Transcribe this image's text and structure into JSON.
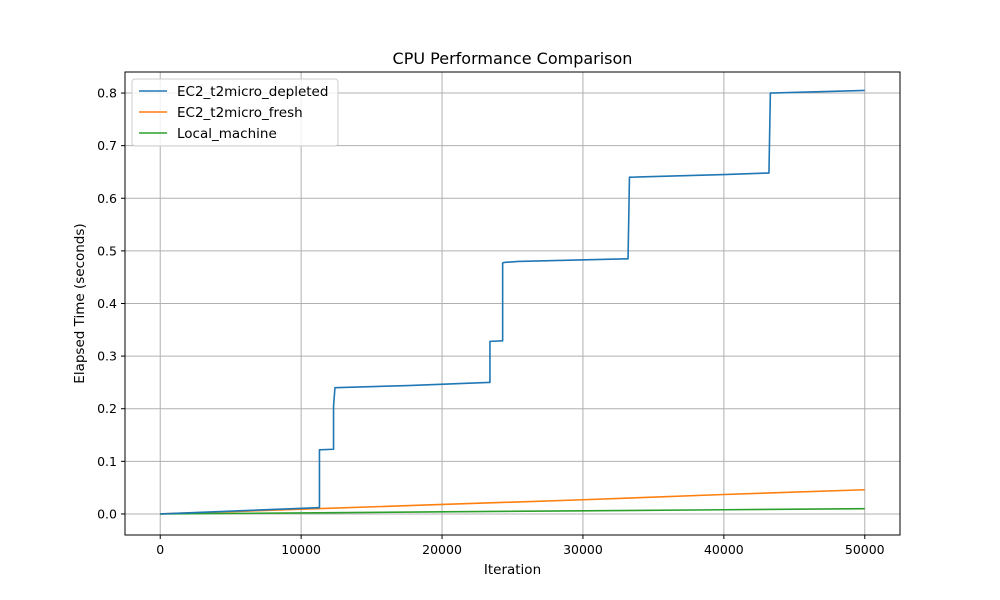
{
  "chart_data": {
    "type": "line",
    "title": "CPU Performance Comparison",
    "xlabel": "Iteration",
    "ylabel": "Elapsed Time (seconds)",
    "xlim": [
      -2500,
      52500
    ],
    "ylim": [
      -0.04,
      0.84
    ],
    "xticks": [
      0,
      10000,
      20000,
      30000,
      40000,
      50000
    ],
    "xtick_labels": [
      "0",
      "10000",
      "20000",
      "30000",
      "40000",
      "50000"
    ],
    "yticks": [
      0.0,
      0.1,
      0.2,
      0.3,
      0.4,
      0.5,
      0.6,
      0.7,
      0.8
    ],
    "ytick_labels": [
      "0.0",
      "0.1",
      "0.2",
      "0.3",
      "0.4",
      "0.5",
      "0.6",
      "0.7",
      "0.8"
    ],
    "grid": true,
    "legend_position": "top-left",
    "series": [
      {
        "name": "EC2_t2micro_depleted",
        "color": "#1f77b4",
        "x": [
          0,
          11200,
          11300,
          11300,
          12300,
          12300,
          12400,
          17600,
          23300,
          23400,
          23400,
          24300,
          24300,
          24400,
          25400,
          33100,
          33200,
          33300,
          40000,
          43100,
          43200,
          43300,
          50000
        ],
        "y": [
          0.0,
          0.012,
          0.012,
          0.122,
          0.123,
          0.205,
          0.24,
          0.244,
          0.25,
          0.25,
          0.328,
          0.329,
          0.477,
          0.478,
          0.48,
          0.485,
          0.485,
          0.64,
          0.645,
          0.648,
          0.648,
          0.8,
          0.805
        ]
      },
      {
        "name": "EC2_t2micro_fresh",
        "color": "#ff7f0e",
        "x": [
          0,
          10000,
          20000,
          30000,
          40000,
          50000
        ],
        "y": [
          0.0,
          0.009,
          0.018,
          0.027,
          0.037,
          0.046
        ]
      },
      {
        "name": "Local_machine",
        "color": "#2ca02c",
        "x": [
          0,
          10000,
          20000,
          30000,
          40000,
          50000
        ],
        "y": [
          0.0,
          0.002,
          0.004,
          0.006,
          0.008,
          0.01
        ]
      }
    ]
  }
}
